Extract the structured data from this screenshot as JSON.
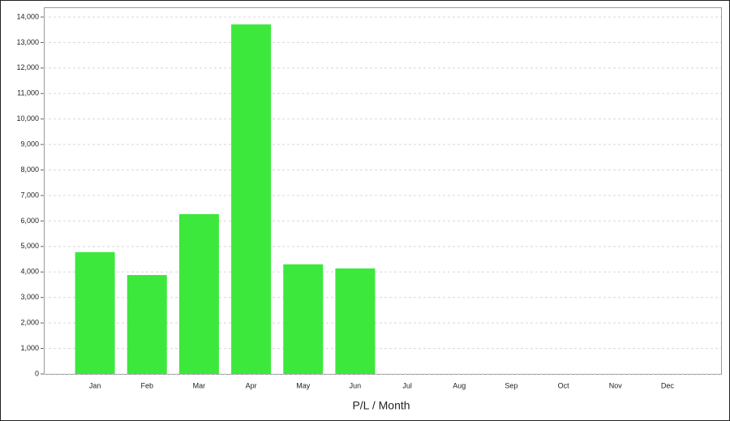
{
  "chart_data": {
    "type": "bar",
    "x_label": "P/L / Month",
    "categories": [
      "Jan",
      "Feb",
      "Mar",
      "Apr",
      "May",
      "Jun",
      "Jul",
      "Aug",
      "Sep",
      "Oct",
      "Nov",
      "Dec"
    ],
    "values": [
      4780,
      3880,
      6270,
      13710,
      4300,
      4140,
      null,
      null,
      null,
      null,
      null,
      null
    ],
    "color": "#3de83d",
    "ylim": [
      0,
      14000
    ],
    "yticks": [
      0,
      {
        "value": 1000,
        "label": "1,000"
      },
      {
        "value": 2000,
        "label": "2,000"
      },
      {
        "value": 3000,
        "label": "3,000"
      },
      {
        "value": 4000,
        "label": "4,000"
      },
      {
        "value": 5000,
        "label": "5,000"
      },
      {
        "value": 6000,
        "label": "6,000"
      },
      {
        "value": 7000,
        "label": "7,000"
      },
      {
        "value": 8000,
        "label": "8,000"
      },
      {
        "value": 9000,
        "label": "9,000"
      },
      {
        "value": 10000,
        "label": "10,000"
      },
      {
        "value": 11000,
        "label": "11,000"
      },
      {
        "value": 12000,
        "label": "12,000"
      },
      {
        "value": 13000,
        "label": "13,000"
      },
      {
        "value": 14000,
        "label": "14,000"
      }
    ],
    "grid": true
  }
}
